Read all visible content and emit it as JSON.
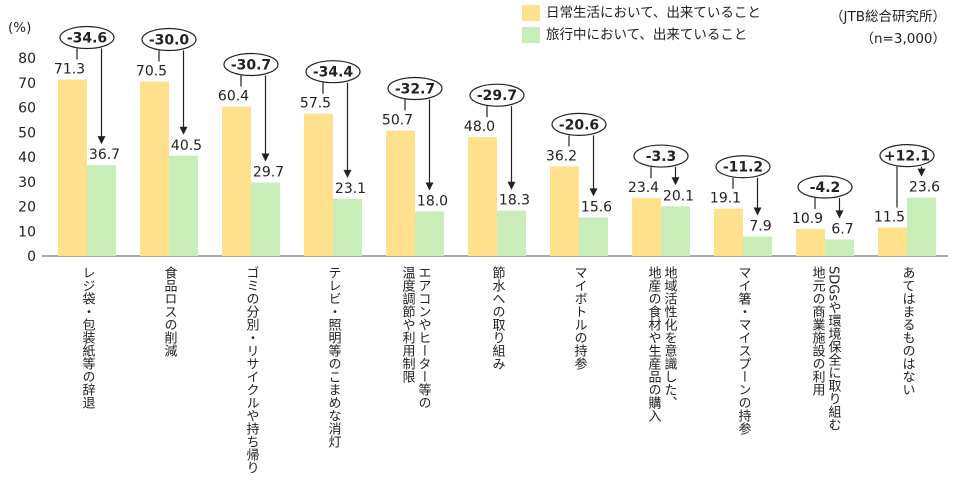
{
  "legend": {
    "series1": "日常生活において、出来ていること",
    "series2": "旅行中において、出来ていること"
  },
  "source": {
    "org": "（JTB総合研究所）",
    "n": "（n=3,000）"
  },
  "colors": {
    "series1": "#FFE08C",
    "series2": "#C9EDB8"
  },
  "chart_data": {
    "type": "bar",
    "ylabel": "(%)",
    "ylim": [
      0,
      80
    ],
    "yticks": [
      0,
      10,
      20,
      30,
      40,
      50,
      60,
      70,
      80
    ],
    "categories": [
      "レジ袋・包装紙等の辞退",
      "食品ロスの削減",
      "ゴミの分別・リサイクルや持ち帰り",
      "テレビ・照明等のこまめな消灯",
      "エアコンやヒーター等の\n温度調節や利用制限",
      "節水への取り組み",
      "マイボトルの持参",
      "地域活性化を意識した、\n地産の食材や生産品の購入",
      "マイ箸・マイスプーンの持参",
      "SDGsや環境保全に取り組む\n地元の商業施設の利用",
      "あてはまるものはない"
    ],
    "series": [
      {
        "name": "日常生活において、出来ていること",
        "values": [
          71.3,
          70.5,
          60.4,
          57.5,
          50.7,
          48.0,
          36.2,
          23.4,
          19.1,
          10.9,
          11.5
        ]
      },
      {
        "name": "旅行中において、出来ていること",
        "values": [
          36.7,
          40.5,
          29.7,
          23.1,
          18.0,
          18.3,
          15.6,
          20.1,
          7.9,
          6.7,
          23.6
        ]
      }
    ],
    "differences": [
      "-34.6",
      "-30.0",
      "-30.7",
      "-34.4",
      "-32.7",
      "-29.7",
      "-20.6",
      "-3.3",
      "-11.2",
      "-4.2",
      "+12.1"
    ]
  }
}
